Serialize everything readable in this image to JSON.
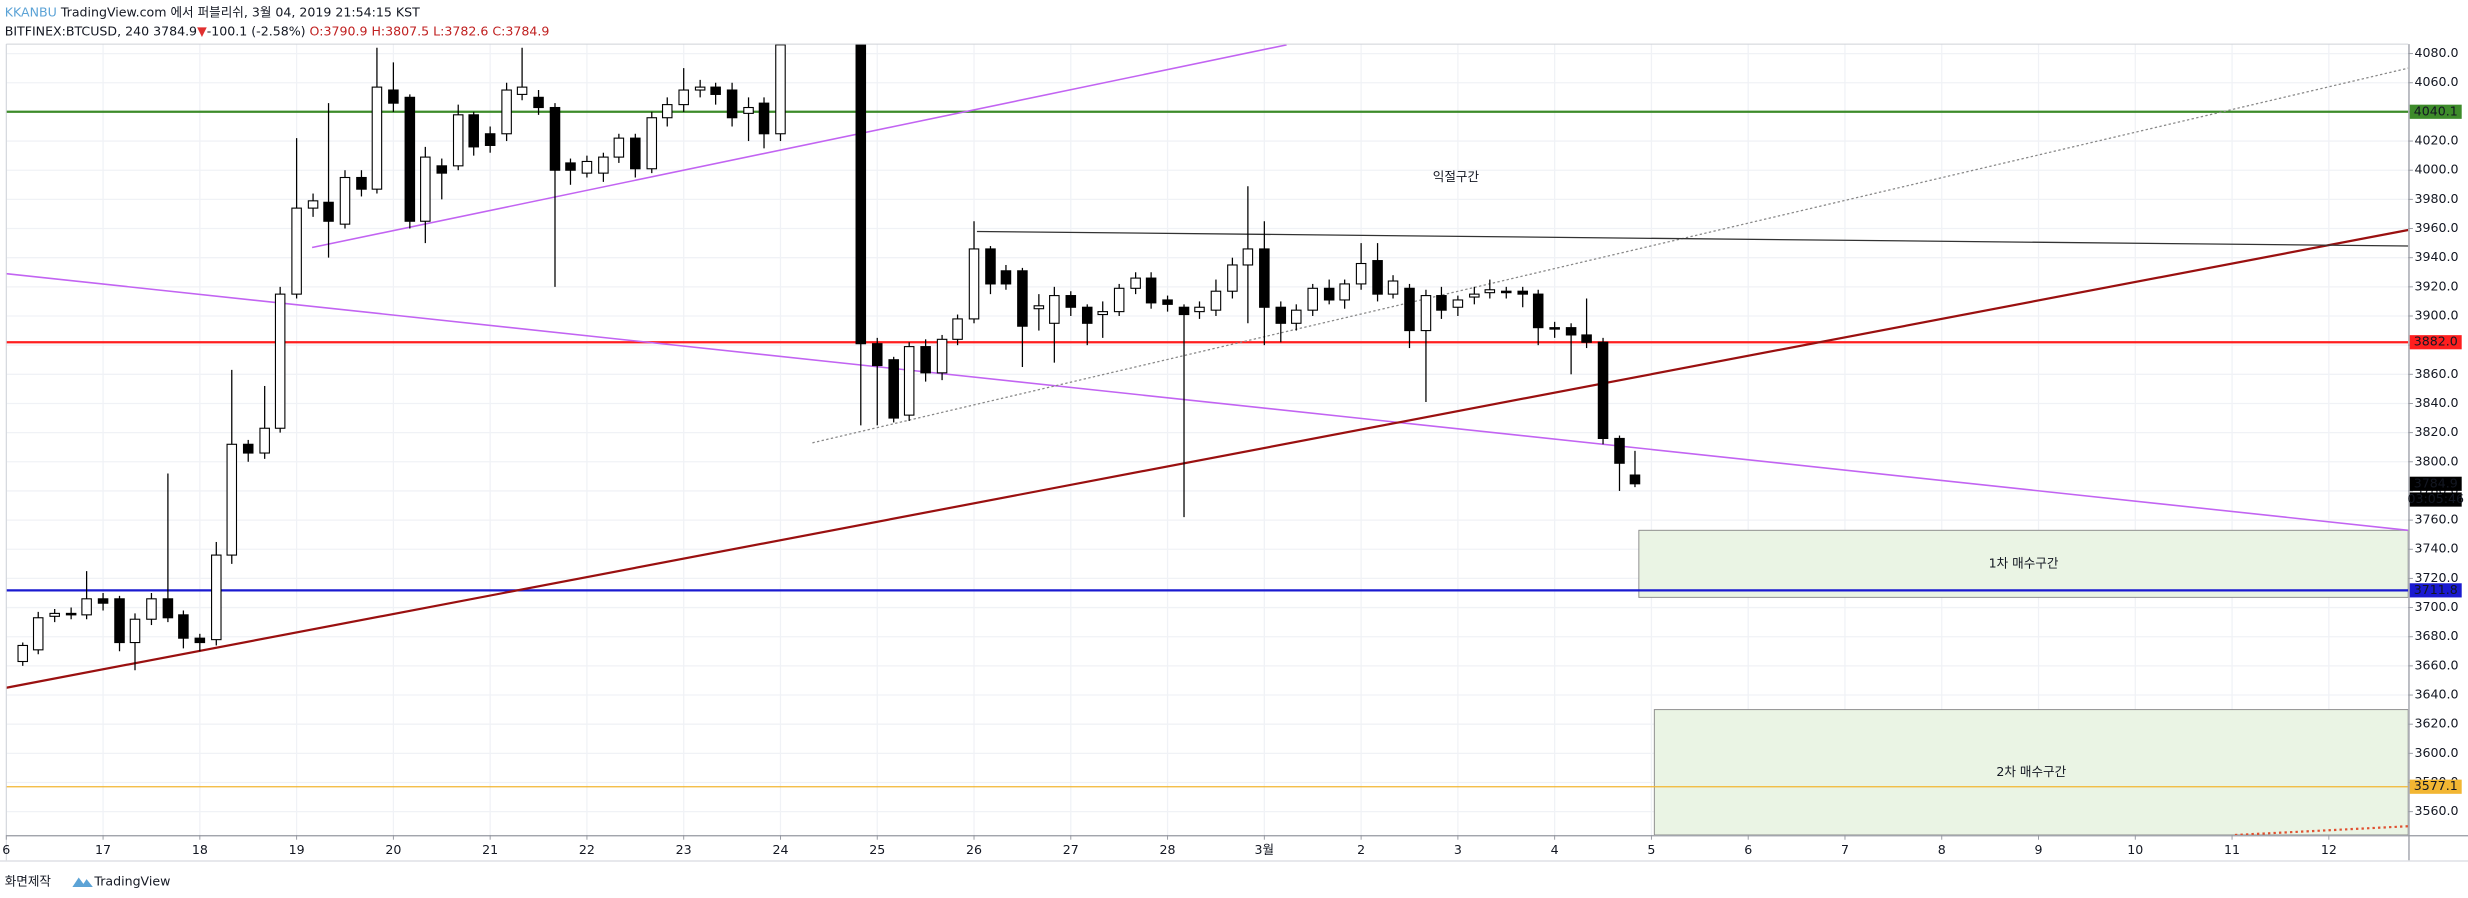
{
  "header": {
    "author": "KKANBU",
    "published": "TradingView.com 에서 퍼블리쉬, 3월 04, 2019 21:54:15 KST",
    "symbol": "BITFINEX:BTCUSD, 240",
    "last": "3784.9",
    "direction": "▼",
    "change": "-100.1 (-2.58%)",
    "ohlc": [
      "O:3790.9",
      "H:3807.5",
      "L:3782.6",
      "C:3784.9"
    ]
  },
  "footer": {
    "text": "화면제작",
    "brand": "TradingView"
  },
  "chart_data": {
    "type": "candlestick",
    "x": [
      0.17,
      0.33,
      0.5,
      0.67,
      0.83,
      1,
      1.17,
      1.33,
      1.5,
      1.67,
      1.83,
      2,
      2.17,
      2.33,
      2.5,
      2.67,
      2.83,
      3,
      3.17,
      3.33,
      3.5,
      3.67,
      3.83,
      4,
      4.17,
      4.33,
      4.5,
      4.67,
      4.83,
      5,
      5.17,
      5.33,
      5.5,
      5.67,
      5.83,
      6,
      6.17,
      6.33,
      6.5,
      6.67,
      6.83,
      7,
      7.17,
      7.33,
      7.5,
      7.67,
      7.83,
      8,
      8.83,
      9,
      9.17,
      9.33,
      9.5,
      9.67,
      9.83,
      10,
      10.17,
      10.33,
      10.5,
      10.67,
      10.83,
      11,
      11.17,
      11.33,
      11.5,
      11.67,
      11.83,
      12,
      12.17,
      12.33,
      12.5,
      12.67,
      12.83,
      13,
      13.17,
      13.33,
      13.5,
      13.67,
      13.83,
      14,
      14.17,
      14.33,
      14.5,
      14.67,
      14.83,
      15,
      15.17,
      15.33,
      15.5,
      15.67,
      15.83,
      16,
      16.17,
      16.33,
      16.5,
      16.67,
      16.83
    ],
    "open": [
      3663,
      3671,
      3694,
      3696,
      3695,
      3706,
      3706,
      3676,
      3692,
      3706,
      3695,
      3679,
      3678,
      3736,
      3812,
      3806,
      3823,
      3915,
      3974,
      3978,
      3963,
      3995,
      3987,
      4055,
      4050,
      3965,
      4003,
      4003,
      4038,
      4025,
      4025,
      4052,
      4050,
      4043,
      4005,
      3998,
      3998,
      4009,
      4022,
      4001,
      4036,
      4045,
      4055,
      4057,
      4055,
      4039,
      4046,
      4025,
      4086,
      3881,
      3870,
      3832,
      3879,
      3861,
      3884,
      3898,
      3946,
      3931,
      3931,
      3905,
      3895,
      3914,
      3906,
      3901,
      3903,
      3919,
      3926,
      3911,
      3906,
      3903,
      3904,
      3917,
      3935,
      3946,
      3906,
      3895,
      3904,
      3919,
      3911,
      3922,
      3938,
      3915,
      3919,
      3890,
      3914,
      3906,
      3913,
      3916,
      3917,
      3917,
      3915,
      3892,
      3892,
      3887,
      3882,
      3816,
      3790.9
    ],
    "high": [
      3676,
      3697,
      3699,
      3700,
      3725,
      3710,
      3708,
      3696,
      3710,
      3792,
      3698,
      3682,
      3745,
      3863,
      3815,
      3852,
      3920,
      4022,
      3984,
      4046,
      4000,
      4000,
      4084,
      4074,
      4052,
      4016,
      4008,
      4045,
      4040,
      4030,
      4060,
      4084,
      4055,
      4046,
      4008,
      4010,
      4012,
      4025,
      4025,
      4040,
      4050,
      4070,
      4062,
      4060,
      4060,
      4050,
      4050,
      4086,
      4086,
      3885,
      3872,
      3882,
      3884,
      3887,
      3901,
      3965,
      3948,
      3935,
      3933,
      3915,
      3920,
      3917,
      3908,
      3910,
      3922,
      3930,
      3930,
      3914,
      3908,
      3910,
      3925,
      3940,
      3989,
      3965,
      3910,
      3908,
      3922,
      3925,
      3925,
      3950,
      3950,
      3928,
      3922,
      3918,
      3920,
      3914,
      3920,
      3925,
      3920,
      3920,
      3918,
      3896,
      3895,
      3912,
      3885,
      3818,
      3807.5
    ],
    "low": [
      3660,
      3668,
      3690,
      3692,
      3692,
      3698,
      3670,
      3657,
      3688,
      3690,
      3672,
      3670,
      3674,
      3730,
      3800,
      3802,
      3820,
      3912,
      3968,
      3940,
      3960,
      3982,
      3984,
      4040,
      3960,
      3950,
      3980,
      4000,
      4010,
      4012,
      4020,
      4048,
      4038,
      3920,
      3990,
      3995,
      3992,
      4005,
      3995,
      3998,
      4030,
      4040,
      4050,
      4045,
      4030,
      4020,
      4015,
      4020,
      3825,
      3825,
      3827,
      3828,
      3855,
      3856,
      3880,
      3895,
      3915,
      3918,
      3865,
      3890,
      3868,
      3900,
      3880,
      3885,
      3900,
      3915,
      3905,
      3903,
      3762,
      3898,
      3900,
      3912,
      3895,
      3880,
      3882,
      3890,
      3900,
      3908,
      3905,
      3918,
      3910,
      3912,
      3878,
      3841,
      3898,
      3900,
      3908,
      3912,
      3912,
      3906,
      3880,
      3885,
      3860,
      3878,
      3812,
      3780,
      3782.6
    ],
    "close": [
      3674,
      3693,
      3696,
      3695,
      3706,
      3703,
      3676,
      3692,
      3706,
      3693,
      3679,
      3676,
      3736,
      3812,
      3806,
      3823,
      3915,
      3974,
      3979,
      3965,
      3995,
      3987,
      4057,
      4046,
      3965,
      4009,
      3998,
      4038,
      4016,
      4017,
      4055,
      4057,
      4043,
      4000,
      4000,
      4006,
      4009,
      4022,
      4001,
      4036,
      4045,
      4055,
      4057,
      4052,
      4036,
      4043,
      4025,
      4086,
      3881,
      3866,
      3830,
      3879,
      3861,
      3884,
      3898,
      3946,
      3922,
      3922,
      3893,
      3907,
      3914,
      3906,
      3895,
      3903,
      3919,
      3926,
      3909,
      3908,
      3901,
      3906,
      3917,
      3935,
      3946,
      3906,
      3895,
      3904,
      3919,
      3911,
      3922,
      3936,
      3915,
      3924,
      3890,
      3914,
      3904,
      3911,
      3915,
      3918,
      3916,
      3915,
      3892,
      3891,
      3887,
      3882,
      3816,
      3799,
      3784.9
    ],
    "up_color": "#ffffff",
    "down_color": "#000000",
    "xlim": [
      0,
      24.82
    ],
    "xticks": [
      {
        "value": 0,
        "label": "6"
      },
      {
        "value": 1,
        "label": "17"
      },
      {
        "value": 2,
        "label": "18"
      },
      {
        "value": 3,
        "label": "19"
      },
      {
        "value": 4,
        "label": "20"
      },
      {
        "value": 5,
        "label": "21"
      },
      {
        "value": 6,
        "label": "22"
      },
      {
        "value": 7,
        "label": "23"
      },
      {
        "value": 8,
        "label": "24"
      },
      {
        "value": 9,
        "label": "25"
      },
      {
        "value": 10,
        "label": "26"
      },
      {
        "value": 11,
        "label": "27"
      },
      {
        "value": 12,
        "label": "28"
      },
      {
        "value": 13,
        "label": "3월"
      },
      {
        "value": 14,
        "label": "2"
      },
      {
        "value": 15,
        "label": "3"
      },
      {
        "value": 16,
        "label": "4"
      },
      {
        "value": 17,
        "label": "5"
      },
      {
        "value": 18,
        "label": "6"
      },
      {
        "value": 19,
        "label": "7"
      },
      {
        "value": 20,
        "label": "8"
      },
      {
        "value": 21,
        "label": "9"
      },
      {
        "value": 22,
        "label": "10"
      },
      {
        "value": 23,
        "label": "11"
      },
      {
        "value": 24,
        "label": "12"
      }
    ],
    "ylim": [
      3544,
      4086.5
    ],
    "yticks": [
      {
        "value": 3560,
        "label": "3560.0"
      },
      {
        "value": 3580,
        "label": "3580.0"
      },
      {
        "value": 3600,
        "label": "3600.0"
      },
      {
        "value": 3620,
        "label": "3620.0"
      },
      {
        "value": 3640,
        "label": "3640.0"
      },
      {
        "value": 3660,
        "label": "3660.0"
      },
      {
        "value": 3680,
        "label": "3680.0"
      },
      {
        "value": 3700,
        "label": "3700.0"
      },
      {
        "value": 3720,
        "label": "3720.0"
      },
      {
        "value": 3740,
        "label": "3740.0"
      },
      {
        "value": 3760,
        "label": "3760.0"
      },
      {
        "value": 3780,
        "label": "3780.0"
      },
      {
        "value": 3800,
        "label": "3800.0"
      },
      {
        "value": 3820,
        "label": "3820.0"
      },
      {
        "value": 3840,
        "label": "3840.0"
      },
      {
        "value": 3860,
        "label": "3860.0"
      },
      {
        "value": 3880,
        "label": "3880.0"
      },
      {
        "value": 3900,
        "label": "3900.0"
      },
      {
        "value": 3920,
        "label": "3920.0"
      },
      {
        "value": 3940,
        "label": "3940.0"
      },
      {
        "value": 3960,
        "label": "3960.0"
      },
      {
        "value": 3980,
        "label": "3980.0"
      },
      {
        "value": 4000,
        "label": "4000.0"
      },
      {
        "value": 4020,
        "label": "4020.0"
      },
      {
        "value": 4040,
        "label": "4040.0"
      },
      {
        "value": 4060,
        "label": "4060.0"
      },
      {
        "value": 4080,
        "label": "4080.0"
      }
    ],
    "grid": true,
    "levels": {
      "values": [
        4040.1,
        3882,
        3711.8,
        3577.1
      ],
      "value_labels": [
        "4040.1",
        "3882.0",
        "3711.8",
        "3577.1"
      ],
      "colors": [
        "#3d8b2a",
        "#ff1e1e",
        "#1a1ad0",
        "#f2b632"
      ],
      "label_text_colors": [
        "#ffffff",
        "#ffffff",
        "#ffffff",
        "#131722"
      ]
    },
    "last_price_color": "#000000",
    "countdown": "03:05:46",
    "trendlines": [
      {
        "x": [
          3.16,
          13.23
        ],
        "y": [
          3947,
          4086
        ],
        "color": "#c264f2",
        "width": 1,
        "dash": ""
      },
      {
        "x": [
          0,
          24.82
        ],
        "y": [
          3929,
          3753
        ],
        "color": "#c264f2",
        "width": 1,
        "dash": ""
      },
      {
        "x": [
          0,
          24.82
        ],
        "y": [
          3645,
          3959
        ],
        "color": "#9a1010",
        "width": 1.4,
        "dash": ""
      },
      {
        "x": [
          8.33,
          24.82
        ],
        "y": [
          3813,
          4070
        ],
        "color": "#888888",
        "width": 0.8,
        "dash": "1.5,1.5"
      },
      {
        "x": [
          10.03,
          24.82
        ],
        "y": [
          3958,
          3948
        ],
        "color": "#333333",
        "width": 0.8,
        "dash": ""
      },
      {
        "x": [
          23.03,
          24.82
        ],
        "y": [
          3544,
          3550
        ],
        "color": "#e05030",
        "width": 1.4,
        "dash": "1.5,2"
      }
    ],
    "zones": [
      {
        "label": "1차 매수구간",
        "x": [
          16.87,
          24.82
        ],
        "y": [
          3707,
          3753
        ]
      },
      {
        "label": "2차 매수구간",
        "x": [
          17.03,
          24.82
        ],
        "y": [
          3544,
          3630
        ]
      }
    ],
    "annotations": [
      {
        "text": "익절구간",
        "x": 14.98,
        "y": 3995
      }
    ]
  }
}
